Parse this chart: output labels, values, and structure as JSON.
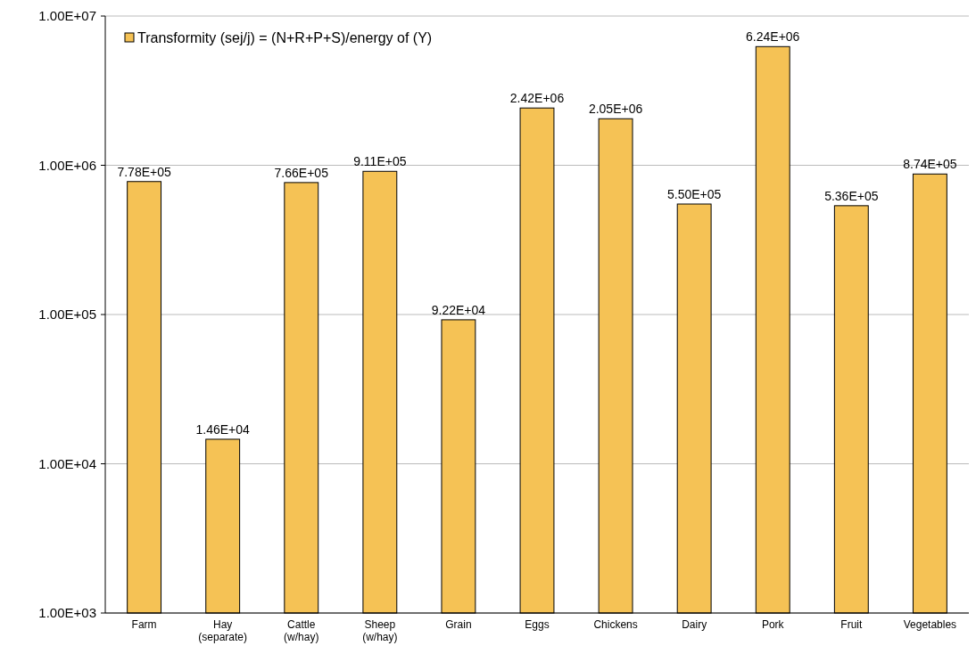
{
  "chart_data": {
    "type": "bar",
    "categories": [
      "Farm",
      "Hay (separate)",
      "Cattle (w/hay)",
      "Sheep (w/hay)",
      "Grain",
      "Eggs",
      "Chickens",
      "Dairy",
      "Pork",
      "Fruit",
      "Vegetables"
    ],
    "series": [
      {
        "name": "Transformity (sej/j) = (N+R+P+S)/energy of (Y)",
        "color": "#f5c255",
        "values": [
          778000,
          14600,
          766000,
          911000,
          92200,
          2420000,
          2050000,
          550000,
          6240000,
          536000,
          874000
        ],
        "value_labels": [
          "7.78E+05",
          "1.46E+04",
          "7.66E+05",
          "9.11E+05",
          "9.22E+04",
          "2.42E+06",
          "2.05E+06",
          "5.50E+05",
          "6.24E+06",
          "5.36E+05",
          "8.74E+05"
        ]
      }
    ],
    "log": true,
    "ylim": [
      1000,
      10000000
    ],
    "yticks": [
      {
        "value": 1000,
        "label": "1.00E+03"
      },
      {
        "value": 10000,
        "label": "1.00E+04"
      },
      {
        "value": 100000,
        "label": "1.00E+05"
      },
      {
        "value": 1000000,
        "label": "1.00E+06"
      },
      {
        "value": 10000000,
        "label": "1.00E+07"
      }
    ],
    "grid": "y",
    "legend": "top left"
  }
}
